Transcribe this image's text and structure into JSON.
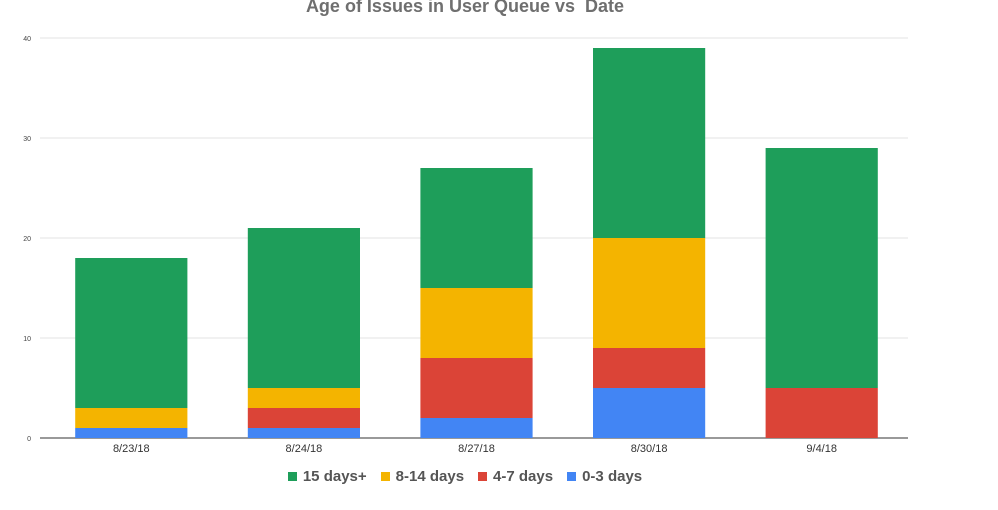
{
  "chart_data": {
    "type": "bar",
    "stacked": true,
    "title": "Age of Issues in User Queue vs  Date",
    "xlabel": "",
    "ylabel": "",
    "categories": [
      "8/23/18",
      "8/24/18",
      "8/27/18",
      "8/30/18",
      "9/4/18"
    ],
    "ylim": [
      0,
      40
    ],
    "yticks": [
      0,
      10,
      20,
      30,
      40
    ],
    "grid": true,
    "legend_position": "bottom",
    "series": [
      {
        "name": "0-3 days",
        "color": "#4285f4",
        "values": [
          1,
          1,
          2,
          5,
          0
        ]
      },
      {
        "name": "4-7 days",
        "color": "#db4437",
        "values": [
          0,
          2,
          6,
          4,
          5
        ]
      },
      {
        "name": "8-14 days",
        "color": "#f4b400",
        "values": [
          2,
          2,
          7,
          11,
          0
        ]
      },
      {
        "name": "15 days+",
        "color": "#1e9e5a",
        "values": [
          15,
          16,
          12,
          19,
          24
        ]
      }
    ],
    "legend_order": [
      "15 days+",
      "8-14 days",
      "4-7 days",
      "0-3 days"
    ]
  }
}
